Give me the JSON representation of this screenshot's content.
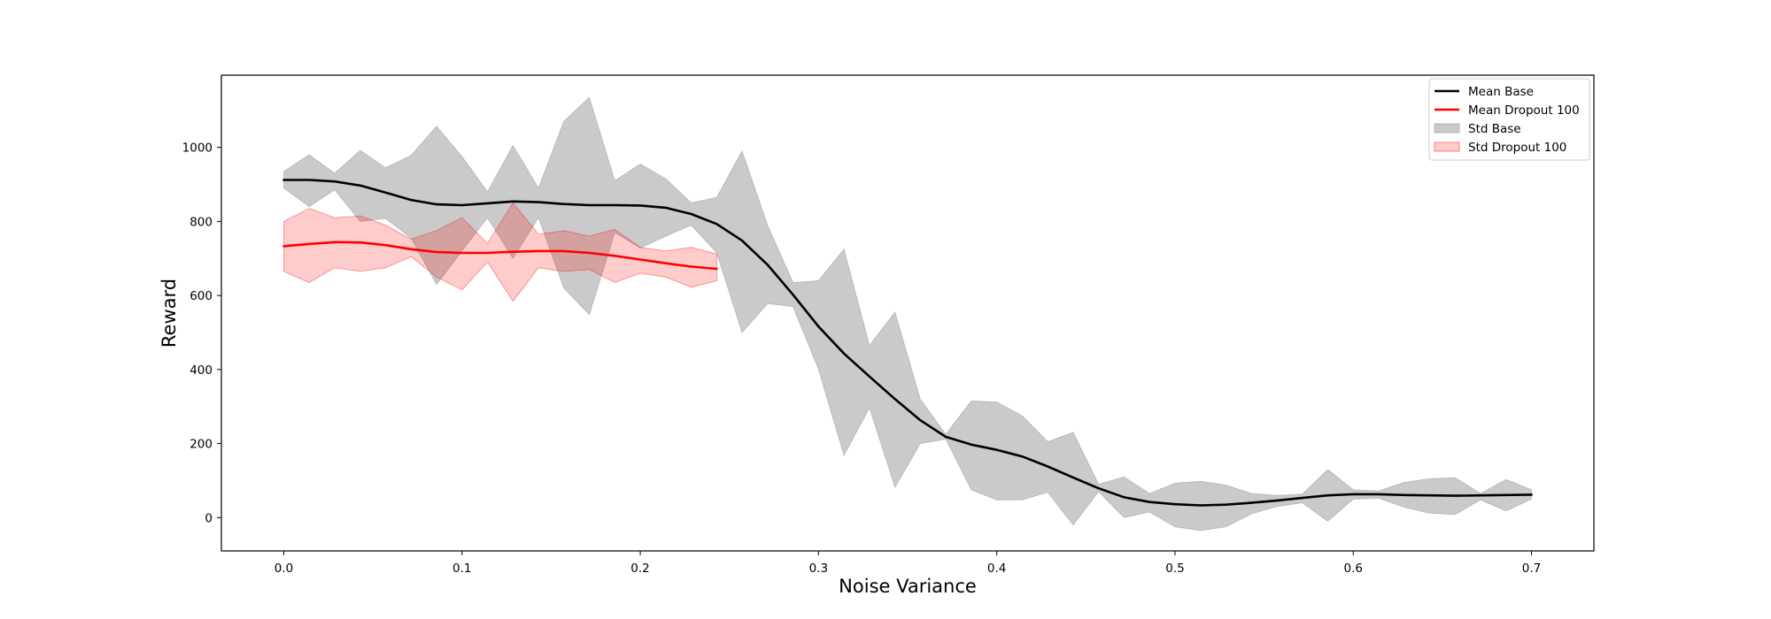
{
  "chart_data": {
    "type": "line",
    "title": "",
    "xlabel": "Noise Variance",
    "ylabel": "Reward",
    "xlim": [
      -0.035,
      0.735
    ],
    "ylim": [
      -90,
      1195
    ],
    "xticks": [
      0.0,
      0.1,
      0.2,
      0.3,
      0.4,
      0.5,
      0.6,
      0.7
    ],
    "xtick_labels": [
      "0.0",
      "0.1",
      "0.2",
      "0.3",
      "0.4",
      "0.5",
      "0.6",
      "0.7"
    ],
    "yticks": [
      0,
      200,
      400,
      600,
      800,
      1000
    ],
    "ytick_labels": [
      "0",
      "200",
      "400",
      "600",
      "800",
      "1000"
    ],
    "grid": false,
    "legend_position": "top-right",
    "legend": [
      {
        "label": "Mean Base",
        "kind": "line",
        "color": "#000000"
      },
      {
        "label": "Mean Dropout 100",
        "kind": "line",
        "color": "#ff0000"
      },
      {
        "label": "Std Base",
        "kind": "band",
        "color": "#808080"
      },
      {
        "label": "Std Dropout 100",
        "kind": "band",
        "color": "#ff0000"
      }
    ],
    "series": [
      {
        "name": "Mean Base",
        "color": "#000000",
        "x": [
          0.0,
          0.0143,
          0.0286,
          0.0429,
          0.0571,
          0.0714,
          0.0857,
          0.1,
          0.1143,
          0.1286,
          0.1429,
          0.1571,
          0.1714,
          0.1857,
          0.2,
          0.2143,
          0.2286,
          0.2429,
          0.2571,
          0.2714,
          0.2857,
          0.3,
          0.3143,
          0.3286,
          0.3429,
          0.3571,
          0.3714,
          0.3857,
          0.4,
          0.4143,
          0.4286,
          0.4429,
          0.4571,
          0.4714,
          0.4857,
          0.5,
          0.5143,
          0.5286,
          0.5429,
          0.5571,
          0.5714,
          0.5857,
          0.6,
          0.6143,
          0.6286,
          0.6429,
          0.6571,
          0.6714,
          0.6857,
          0.7
        ],
        "y": [
          912,
          912,
          908,
          897,
          878,
          858,
          846,
          844,
          849,
          854,
          852,
          847,
          844,
          844,
          843,
          837,
          820,
          793,
          748,
          683,
          602,
          516,
          443,
          381,
          320,
          263,
          218,
          197,
          183,
          165,
          138,
          108,
          79,
          55,
          42,
          36,
          33,
          35,
          40,
          46,
          53,
          60,
          63,
          63,
          61,
          60,
          59,
          60,
          61,
          62
        ]
      },
      {
        "name": "Mean Dropout 100",
        "color": "#ff0000",
        "x": [
          0.0,
          0.0143,
          0.0286,
          0.0429,
          0.0571,
          0.0714,
          0.0857,
          0.1,
          0.1143,
          0.1286,
          0.1429,
          0.1571,
          0.1714,
          0.1857,
          0.2,
          0.2143,
          0.2286,
          0.2429
        ],
        "y": [
          733,
          739,
          744,
          743,
          736,
          725,
          717,
          715,
          715,
          718,
          720,
          720,
          715,
          707,
          697,
          687,
          678,
          672
        ]
      }
    ],
    "bands": [
      {
        "name": "Std Base",
        "color": "#808080",
        "x": [
          0.0,
          0.0143,
          0.0286,
          0.0429,
          0.0571,
          0.0714,
          0.0857,
          0.1,
          0.1143,
          0.1286,
          0.1429,
          0.1571,
          0.1714,
          0.1857,
          0.2,
          0.2143,
          0.2286,
          0.2429,
          0.2571,
          0.2714,
          0.2857,
          0.3,
          0.3143,
          0.3286,
          0.3429,
          0.3571,
          0.3714,
          0.3857,
          0.4,
          0.4143,
          0.4286,
          0.4429,
          0.4571,
          0.4714,
          0.4857,
          0.5,
          0.5143,
          0.5286,
          0.5429,
          0.5571,
          0.5714,
          0.5857,
          0.6,
          0.6143,
          0.6286,
          0.6429,
          0.6571,
          0.6714,
          0.6857,
          0.7
        ],
        "upper": [
          935,
          980,
          930,
          992,
          945,
          978,
          1057,
          975,
          880,
          1005,
          890,
          1070,
          1135,
          910,
          955,
          915,
          850,
          865,
          990,
          790,
          635,
          640,
          725,
          465,
          555,
          320,
          225,
          315,
          312,
          275,
          205,
          230,
          90,
          110,
          65,
          93,
          98,
          88,
          65,
          60,
          63,
          130,
          75,
          72,
          95,
          105,
          108,
          65,
          103,
          75
        ],
        "lower": [
          890,
          840,
          885,
          800,
          808,
          755,
          630,
          720,
          810,
          700,
          810,
          620,
          548,
          770,
          728,
          760,
          790,
          715,
          500,
          578,
          570,
          400,
          168,
          297,
          82,
          200,
          212,
          75,
          48,
          48,
          68,
          -20,
          70,
          0,
          15,
          -25,
          -35,
          -25,
          10,
          30,
          40,
          -10,
          50,
          52,
          28,
          12,
          8,
          48,
          18,
          50
        ]
      },
      {
        "name": "Std Dropout 100",
        "color": "#ff0000",
        "x": [
          0.0,
          0.0143,
          0.0286,
          0.0429,
          0.0571,
          0.0714,
          0.0857,
          0.1,
          0.1143,
          0.1286,
          0.1429,
          0.1571,
          0.1714,
          0.1857,
          0.2,
          0.2143,
          0.2286,
          0.2429
        ],
        "upper": [
          800,
          835,
          810,
          815,
          790,
          752,
          775,
          810,
          740,
          850,
          765,
          775,
          760,
          778,
          730,
          720,
          730,
          712
        ],
        "lower": [
          665,
          635,
          675,
          665,
          675,
          705,
          650,
          615,
          690,
          585,
          675,
          665,
          670,
          635,
          660,
          650,
          622,
          640
        ]
      }
    ]
  }
}
